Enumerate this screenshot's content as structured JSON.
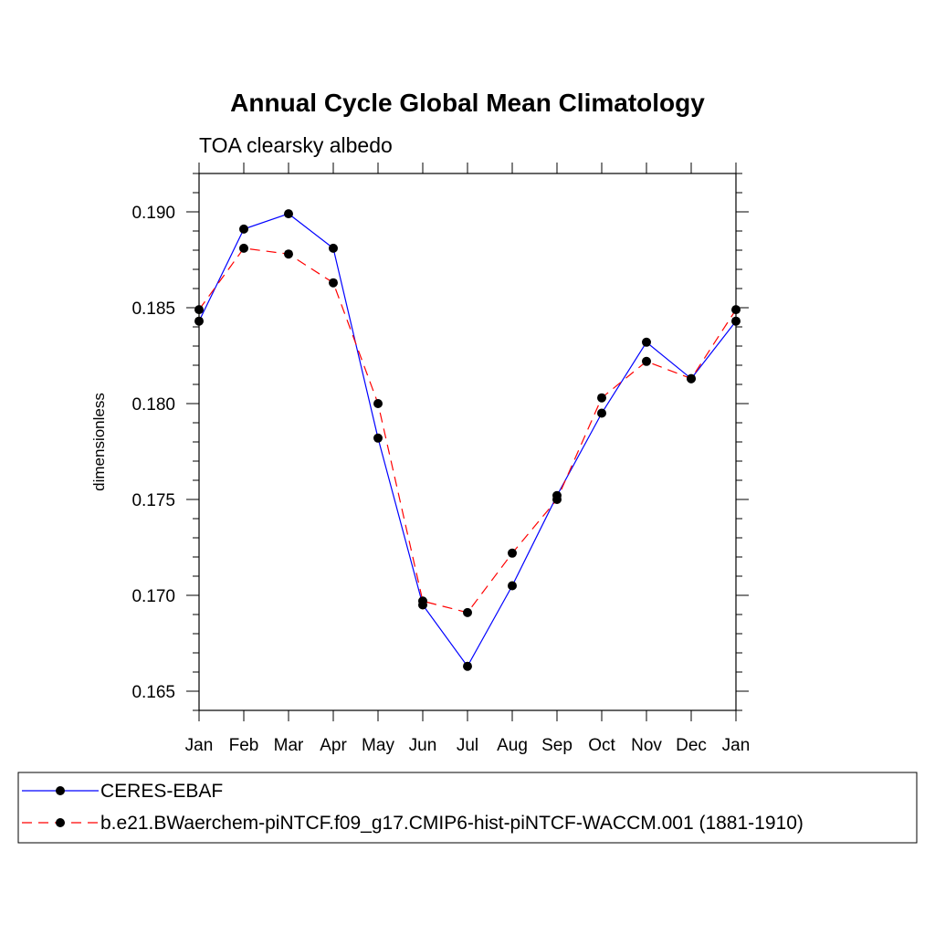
{
  "chart_data": {
    "type": "line",
    "title": "Annual Cycle Global Mean Climatology",
    "subtitle": "TOA clearsky albedo",
    "xlabel": "",
    "ylabel": "dimensionless",
    "categories": [
      "Jan",
      "Feb",
      "Mar",
      "Apr",
      "May",
      "Jun",
      "Jul",
      "Aug",
      "Sep",
      "Oct",
      "Nov",
      "Dec",
      "Jan"
    ],
    "ylim": [
      0.164,
      0.192
    ],
    "yticks": [
      "0.165",
      "0.170",
      "0.175",
      "0.180",
      "0.185",
      "0.190"
    ],
    "grid": false,
    "legend_position": "bottom",
    "series": [
      {
        "name": "CERES-EBAF",
        "color": "#0000ff",
        "line_style": "solid",
        "marker": "filled-circle",
        "values": [
          0.1843,
          0.1891,
          0.1899,
          0.1881,
          0.1782,
          0.1695,
          0.1663,
          0.1705,
          0.1752,
          0.1795,
          0.1832,
          0.1813,
          0.1843
        ]
      },
      {
        "name": "b.e21.BWaerchem-piNTCF.f09_g17.CMIP6-hist-piNTCF-WACCM.001 (1881-1910)",
        "color": "#ff0000",
        "line_style": "dashed",
        "marker": "filled-circle",
        "values": [
          0.1849,
          0.1881,
          0.1878,
          0.1863,
          0.18,
          0.1697,
          0.1691,
          0.1722,
          0.175,
          0.1803,
          0.1822,
          0.1813,
          0.1849
        ]
      }
    ]
  }
}
